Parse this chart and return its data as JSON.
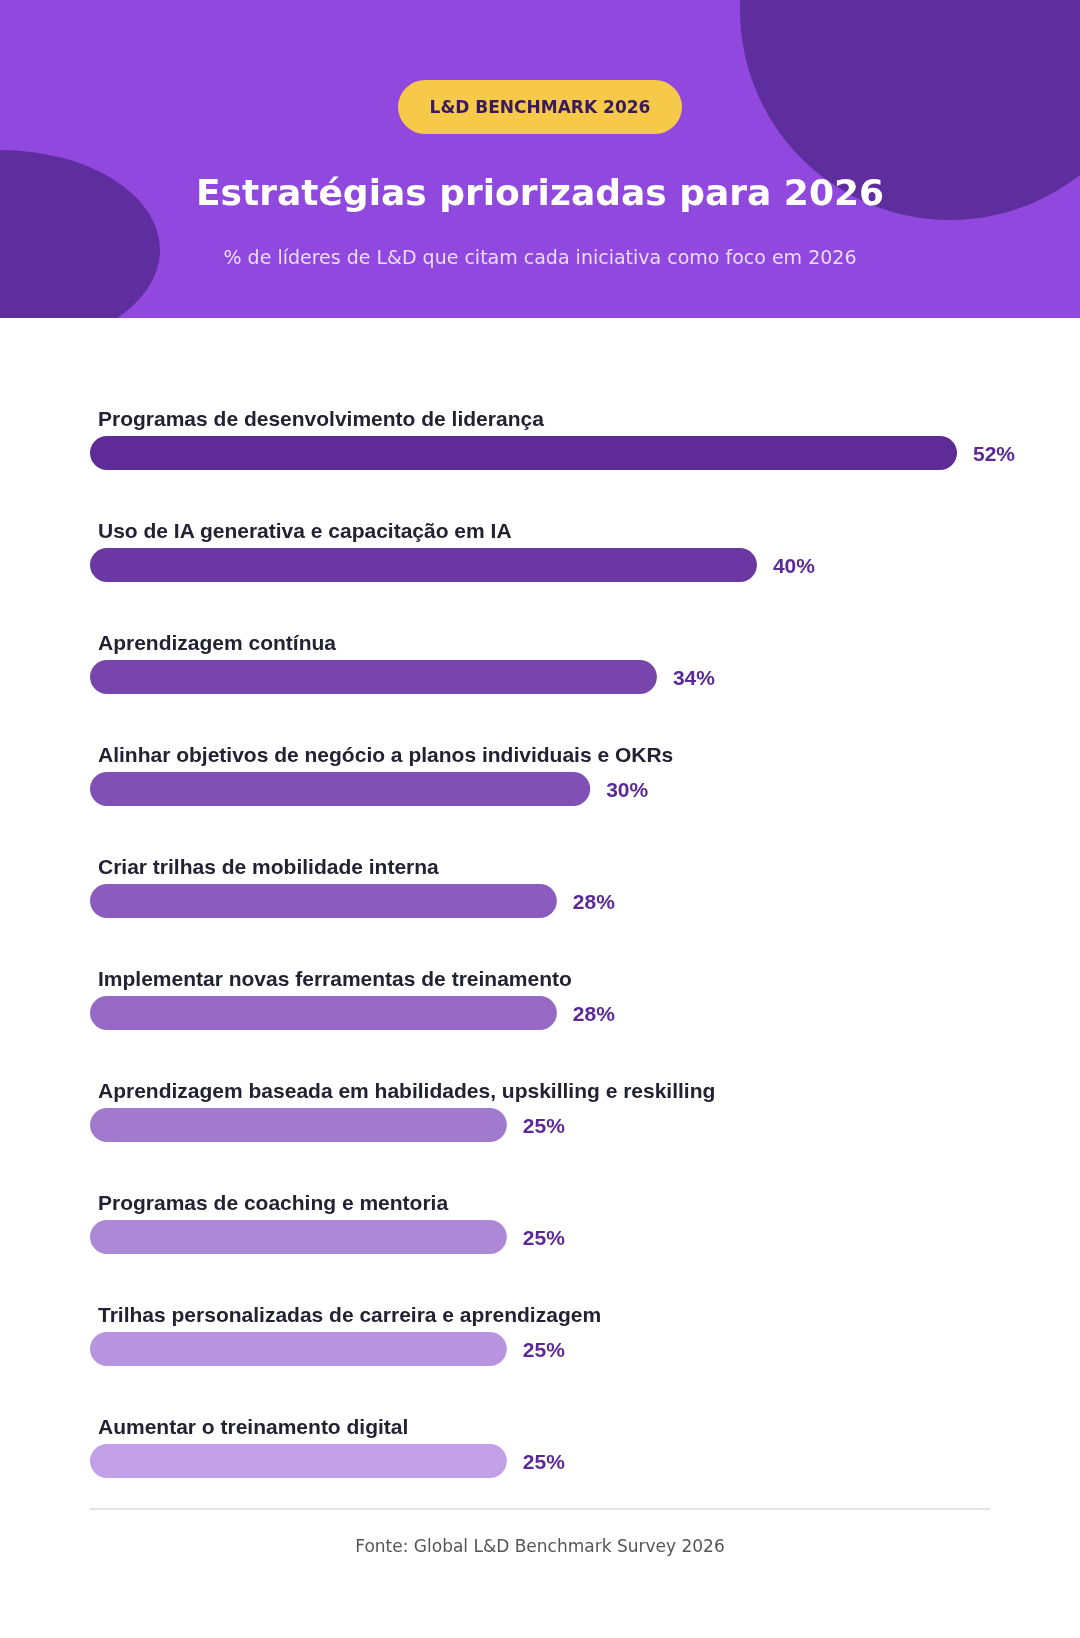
{
  "chart_data": {
    "type": "bar",
    "orientation": "horizontal",
    "title": "Estratégias priorizadas para 2026",
    "subtitle": "% de líderes de L&D que citam cada iniciativa como foco em 2026",
    "categories": [
      "Programas de desenvolvimento de liderança",
      "Uso de IA generativa e capacitação em IA",
      "Aprendizagem contínua",
      "Alinhar objetivos de negócio a planos individuais e OKRs",
      "Criar trilhas de mobilidade interna",
      "Implementar novas ferramentas de treinamento",
      "Aprendizagem baseada em habilidades, upskilling e reskilling",
      "Programas de coaching e mentoria",
      "Trilhas personalizadas de carreira e aprendizagem",
      "Aumentar o treinamento digital"
    ],
    "values": [
      52,
      40,
      34,
      30,
      28,
      28,
      25,
      25,
      25,
      25
    ],
    "value_labels": [
      "52%",
      "40%",
      "34%",
      "30%",
      "28%",
      "28%",
      "25%",
      "25%",
      "25%",
      "25%"
    ],
    "colors": [
      "#5e2b97",
      "#6a37a3",
      "#7845ac",
      "#8150b5",
      "#8b5cbd",
      "#9669c4",
      "#a27acd",
      "#ad88d6",
      "#b893e0",
      "#c2a0e8"
    ],
    "annotations": [
      "L&D BENCHMARK 2026",
      "Fonte: Global L&D Benchmark Survey 2026"
    ]
  }
}
